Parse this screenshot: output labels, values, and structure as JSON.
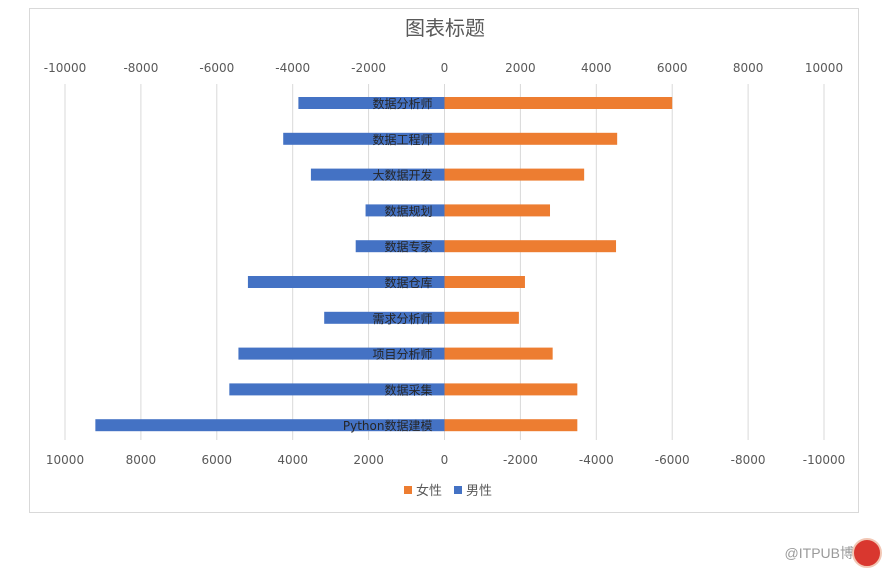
{
  "chart_data": {
    "type": "bar",
    "orientation": "horizontal",
    "title": "图表标题",
    "categories": [
      "数据分析师",
      "数据工程师",
      "大数据开发",
      "数据规划",
      "数据专家",
      "数据仓库",
      "需求分析师",
      "项目分析师",
      "数据采集",
      "Python数据建模"
    ],
    "series": [
      {
        "name": "女性",
        "color": "#ed7d31",
        "values": [
          6000,
          4550,
          3680,
          2780,
          4520,
          2120,
          1960,
          2850,
          3500,
          3500
        ]
      },
      {
        "name": "男性",
        "color": "#4472c4",
        "values": [
          -3850,
          -4250,
          -3520,
          -2080,
          -2340,
          -5180,
          -3170,
          -5430,
          -5670,
          -9200
        ]
      }
    ],
    "xlim": [
      -10000,
      10000
    ],
    "top_axis_ticks": [
      "-10000",
      "-8000",
      "-6000",
      "-4000",
      "-2000",
      "0",
      "2000",
      "4000",
      "6000",
      "8000",
      "10000"
    ],
    "bottom_axis_ticks": [
      "10000",
      "8000",
      "6000",
      "4000",
      "2000",
      "0",
      "-2000",
      "-4000",
      "-6000",
      "-8000",
      "-10000"
    ],
    "grid": true,
    "legend_position": "bottom"
  },
  "watermark": {
    "text": "@ITPUB博客"
  }
}
